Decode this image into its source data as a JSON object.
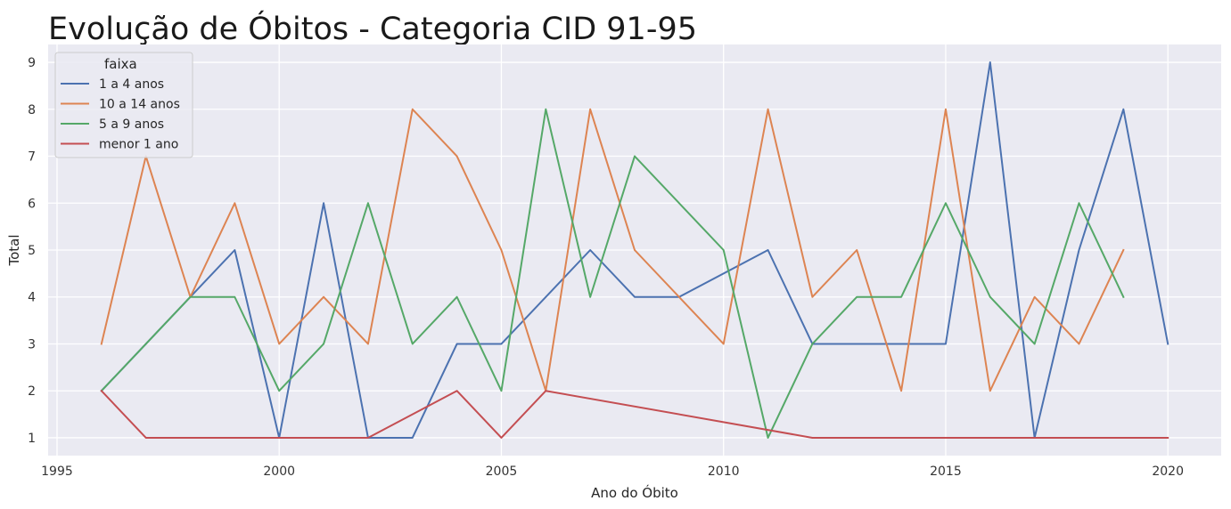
{
  "chart_data": {
    "type": "line",
    "title": "Evolução de Óbitos - Categoria CID 91-95",
    "xlabel": "Ano do Óbito",
    "ylabel": "Total",
    "xlim": [
      1994.8,
      2021.2
    ],
    "ylim": [
      0.62,
      9.38
    ],
    "xticks": [
      1995,
      2000,
      2005,
      2010,
      2015,
      2020
    ],
    "yticks": [
      1,
      2,
      3,
      4,
      5,
      6,
      7,
      8,
      9
    ],
    "grid": true,
    "legend": {
      "title": "faixa",
      "placement": "top-left"
    },
    "series": [
      {
        "name": "1 a 4 anos",
        "color": "#4c72b0",
        "x": [
          1996,
          1998,
          1999,
          2000,
          2001,
          2002,
          2003,
          2004,
          2005,
          2007,
          2008,
          2009,
          2011,
          2012,
          2013,
          2014,
          2015,
          2016,
          2017,
          2018,
          2019,
          2020
        ],
        "y": [
          2,
          4,
          5,
          1,
          6,
          1,
          1,
          3,
          3,
          5,
          4,
          4,
          5,
          3,
          3,
          3,
          3,
          9,
          1,
          5,
          8,
          3
        ]
      },
      {
        "name": "10 a 14 anos",
        "color": "#dd8452",
        "x": [
          1996,
          1997,
          1998,
          1999,
          2000,
          2001,
          2002,
          2003,
          2004,
          2005,
          2006,
          2007,
          2008,
          2010,
          2011,
          2012,
          2013,
          2014,
          2015,
          2016,
          2017,
          2018,
          2019
        ],
        "y": [
          3,
          7,
          4,
          6,
          3,
          4,
          3,
          8,
          7,
          5,
          2,
          8,
          5,
          3,
          8,
          4,
          5,
          2,
          8,
          2,
          4,
          3,
          5
        ]
      },
      {
        "name": "5 a 9 anos",
        "color": "#55a868",
        "x": [
          1996,
          1998,
          1999,
          2000,
          2001,
          2002,
          2003,
          2004,
          2005,
          2006,
          2007,
          2008,
          2010,
          2011,
          2012,
          2013,
          2014,
          2015,
          2016,
          2017,
          2018,
          2019
        ],
        "y": [
          2,
          4,
          4,
          2,
          3,
          6,
          3,
          4,
          2,
          8,
          4,
          7,
          5,
          1,
          3,
          4,
          4,
          6,
          4,
          3,
          6,
          4
        ]
      },
      {
        "name": "menor 1 ano",
        "color": "#c44e52",
        "x": [
          1996,
          1997,
          1998,
          1999,
          2000,
          2001,
          2002,
          2004,
          2005,
          2006,
          2012,
          2013,
          2014,
          2015,
          2016,
          2017,
          2018,
          2019,
          2020
        ],
        "y": [
          2,
          1,
          1,
          1,
          1,
          1,
          1,
          2,
          1,
          2,
          1,
          1,
          1,
          1,
          1,
          1,
          1,
          1,
          1
        ]
      }
    ]
  }
}
